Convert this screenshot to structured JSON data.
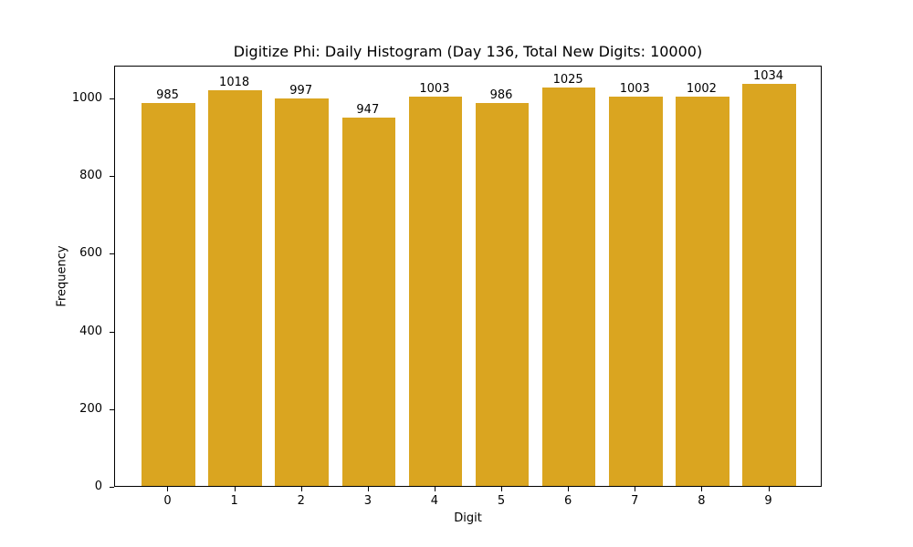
{
  "chart_data": {
    "type": "bar",
    "title": "Digitize Phi: Daily Histogram (Day 136, Total New Digits: 10000)",
    "xlabel": "Digit",
    "ylabel": "Frequency",
    "categories": [
      "0",
      "1",
      "2",
      "3",
      "4",
      "5",
      "6",
      "7",
      "8",
      "9"
    ],
    "values": [
      985,
      1018,
      997,
      947,
      1003,
      986,
      1025,
      1003,
      1002,
      1034
    ],
    "bar_labels": [
      "985",
      "1018",
      "997",
      "947",
      "1003",
      "986",
      "1025",
      "1003",
      "1002",
      "1034"
    ],
    "yticks": [
      0,
      200,
      400,
      600,
      800,
      1000
    ],
    "ylim": [
      0,
      1084
    ],
    "xlim": [
      -0.8,
      9.8
    ],
    "grid": false,
    "legend": null,
    "bar_color": "#DAA520"
  }
}
